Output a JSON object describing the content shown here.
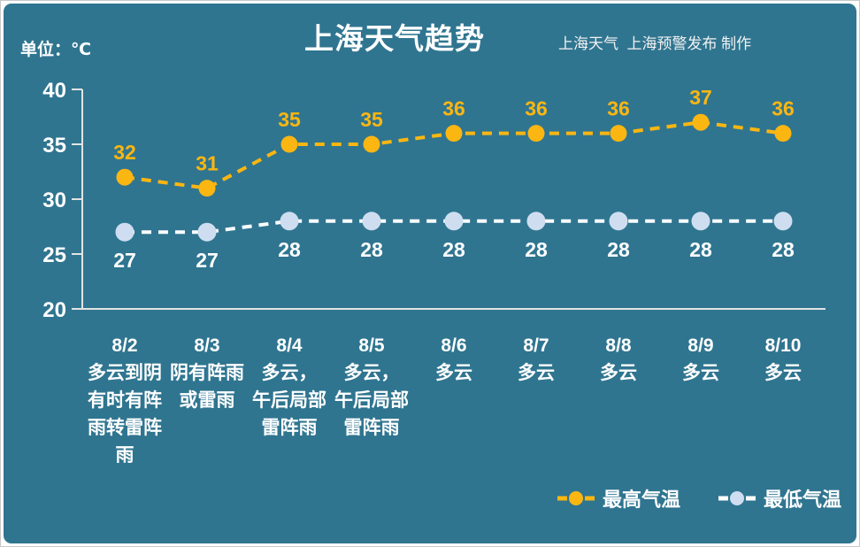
{
  "page": {
    "background_color": "#2F7590",
    "frame_color": "#FFFFFF"
  },
  "header": {
    "unit_label": "单位：℃",
    "title": "上海天气趋势",
    "credits": "上海天气  上海预警发布 制作"
  },
  "chart_data": {
    "type": "line",
    "title": "上海天气趋势",
    "unit": "℃",
    "ylim": [
      20,
      40
    ],
    "yticks": [
      20,
      25,
      30,
      35,
      40
    ],
    "grid": false,
    "legend_position": "bottom-right",
    "categories": [
      "8/2",
      "8/3",
      "8/4",
      "8/5",
      "8/6",
      "8/7",
      "8/8",
      "8/9",
      "8/10"
    ],
    "conditions": [
      "多云到阴有时有阵雨转雷阵雨",
      "阴有阵雨或雷雨",
      "多云，午后局部雷阵雨",
      "多云，午后局部雷阵雨",
      "多云",
      "多云",
      "多云",
      "多云",
      "多云"
    ],
    "condition_lines": [
      [
        "多云到阴",
        "有时有阵",
        "雨转雷阵",
        "雨"
      ],
      [
        "阴有阵雨",
        "或雷雨"
      ],
      [
        "多云，",
        "午后局部",
        "雷阵雨"
      ],
      [
        "多云，",
        "午后局部",
        "雷阵雨"
      ],
      [
        "多云"
      ],
      [
        "多云"
      ],
      [
        "多云"
      ],
      [
        "多云"
      ],
      [
        "多云"
      ]
    ],
    "series": [
      {
        "name": "最高气温",
        "values": [
          32,
          31,
          35,
          35,
          36,
          36,
          36,
          37,
          36
        ],
        "line_color": "#FBB612",
        "marker_color": "#FBB612",
        "label_color": "#FBB612"
      },
      {
        "name": "最低气温",
        "values": [
          27,
          27,
          28,
          28,
          28,
          28,
          28,
          28,
          28
        ],
        "line_color": "#FFFFFF",
        "marker_color": "#CEDEF0",
        "label_color": "#FFFFFF"
      }
    ],
    "axis_color": "#E3E3E3",
    "text_color": "#FFFFFF"
  }
}
